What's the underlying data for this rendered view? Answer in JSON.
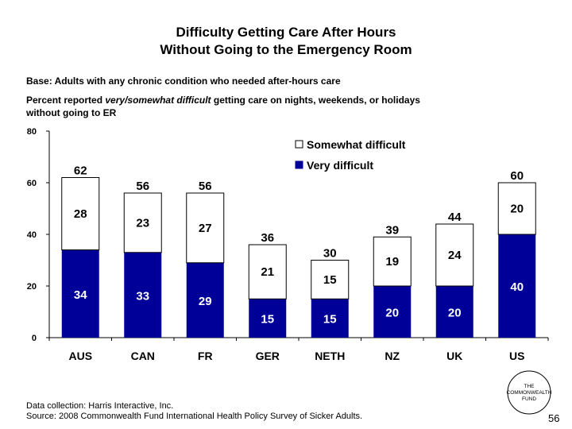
{
  "chart_data": {
    "type": "bar",
    "stacked": true,
    "title_lines": [
      "Difficulty Getting Care After Hours",
      "Without Going to the Emergency Room"
    ],
    "base_note": "Base: Adults with any chronic condition who needed after-hours care",
    "description": {
      "prefix": "Percent reported ",
      "emphasis": "very/somewhat difficult",
      "suffix": " getting care on nights, weekends, or holidays without going to ER"
    },
    "categories": [
      "AUS",
      "CAN",
      "FR",
      "GER",
      "NETH",
      "NZ",
      "UK",
      "US"
    ],
    "series": [
      {
        "name": "Very difficult",
        "color": "#000099",
        "values": [
          34,
          33,
          29,
          15,
          15,
          20,
          20,
          40
        ]
      },
      {
        "name": "Somewhat difficult",
        "color": "#ffffff",
        "values": [
          28,
          23,
          27,
          21,
          15,
          19,
          24,
          20
        ]
      }
    ],
    "totals": [
      62,
      56,
      56,
      36,
      30,
      39,
      44,
      60
    ],
    "ylim": [
      0,
      80
    ],
    "yticks": [
      0,
      20,
      40,
      60,
      80
    ],
    "legend_position": "top-right",
    "grid": false
  },
  "footer": {
    "data_collection": "Data collection: Harris Interactive, Inc.",
    "source": "Source: 2008 Commonwealth Fund International Health Policy Survey of Sicker Adults."
  },
  "logo": {
    "line1": "THE",
    "line2": "COMMONWEALTH",
    "line3": "FUND"
  },
  "page_number": "56"
}
